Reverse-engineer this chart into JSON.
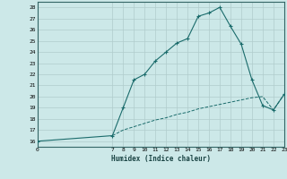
{
  "xlabel": "Humidex (Indice chaleur)",
  "bg_color": "#cce8e8",
  "grid_color": "#b0cccc",
  "line_color": "#1a6b6b",
  "xlim": [
    0,
    23
  ],
  "ylim": [
    15.5,
    28.5
  ],
  "yticks": [
    16,
    17,
    18,
    19,
    20,
    21,
    22,
    23,
    24,
    25,
    26,
    27,
    28
  ],
  "xticks": [
    0,
    7,
    8,
    9,
    10,
    11,
    12,
    13,
    14,
    15,
    16,
    17,
    18,
    19,
    20,
    21,
    22,
    23
  ],
  "main_x": [
    0,
    7,
    8,
    9,
    10,
    11,
    12,
    13,
    14,
    15,
    16,
    17,
    18,
    19,
    20,
    21,
    22,
    23
  ],
  "main_y": [
    16.0,
    16.5,
    19.0,
    21.5,
    22.0,
    23.2,
    24.0,
    24.8,
    25.2,
    27.2,
    27.5,
    28.0,
    26.3,
    24.7,
    21.5,
    19.2,
    18.8,
    20.2
  ],
  "base_x": [
    7,
    8,
    9,
    10,
    11,
    12,
    13,
    14,
    15,
    16,
    17,
    18,
    19,
    20,
    21,
    22,
    23
  ],
  "base_y": [
    16.5,
    17.0,
    17.3,
    17.6,
    17.9,
    18.1,
    18.4,
    18.6,
    18.9,
    19.1,
    19.3,
    19.5,
    19.7,
    19.9,
    20.0,
    18.8,
    20.2
  ]
}
